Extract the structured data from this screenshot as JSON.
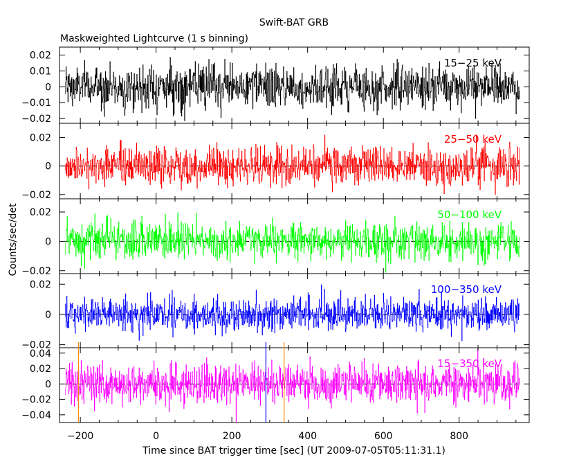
{
  "title": "Swift-BAT GRB",
  "subtitle": "Maskweighted Lightcurve (1 s binning)",
  "chart_data": {
    "type": "line",
    "xlabel": "Time since BAT trigger time [sec] (UT 2009-07-05T05:11:31.1)",
    "ylabel": "Counts/sec/det",
    "xlim": [
      -255,
      985
    ],
    "x_ticks": [
      -200,
      0,
      200,
      400,
      600,
      800
    ],
    "x_tick_labels": [
      "−200",
      "0",
      "200",
      "400",
      "600",
      "800"
    ],
    "data_x_range": [
      -240,
      960
    ],
    "bin_seconds": 1,
    "grid": false,
    "legend_placement": "top-right (label inside each panel)",
    "marker_lines": [
      {
        "x": -205,
        "color": "#ff8c00"
      },
      {
        "x": 290,
        "color": "#0000ff"
      },
      {
        "x": 338,
        "color": "#ff8c00"
      }
    ],
    "panels": [
      {
        "name": "15−25 keV",
        "color": "#000000",
        "ylim": [
          -0.023,
          0.025
        ],
        "y_ticks": [
          0.02,
          0.01,
          0,
          -0.01,
          -0.02
        ],
        "y_tick_labels": [
          "0.02",
          "0.01",
          "0",
          "−0.01",
          "−0.02"
        ],
        "noise_sigma": 0.0068,
        "zero_line": false
      },
      {
        "name": "25−50 keV",
        "color": "#ff0000",
        "ylim": [
          -0.023,
          0.03
        ],
        "y_ticks": [
          0.02,
          0,
          -0.02
        ],
        "y_tick_labels": [
          "0.02",
          "0",
          "−0.02"
        ],
        "noise_sigma": 0.0068,
        "zero_line": true
      },
      {
        "name": "50−100 keV",
        "color": "#00ff00",
        "ylim": [
          -0.022,
          0.029
        ],
        "y_ticks": [
          0.02,
          0,
          -0.02
        ],
        "y_tick_labels": [
          "0.02",
          "0",
          "−0.02"
        ],
        "noise_sigma": 0.0065,
        "zero_line": true
      },
      {
        "name": "100−350 keV",
        "color": "#0000ff",
        "ylim": [
          -0.022,
          0.027
        ],
        "y_ticks": [
          0.02,
          0,
          -0.02
        ],
        "y_tick_labels": [
          "0.02",
          "0",
          "−0.02"
        ],
        "noise_sigma": 0.0055,
        "zero_line": true
      },
      {
        "name": "15−350 keV",
        "color": "#ff00ff",
        "ylim": [
          -0.05,
          0.047
        ],
        "y_ticks": [
          0.04,
          0.02,
          0,
          -0.02,
          -0.04
        ],
        "y_tick_labels": [
          "0.04",
          "0.02",
          "0",
          "−0.02",
          "−0.04"
        ],
        "noise_sigma": 0.0135,
        "zero_line": true
      }
    ]
  }
}
